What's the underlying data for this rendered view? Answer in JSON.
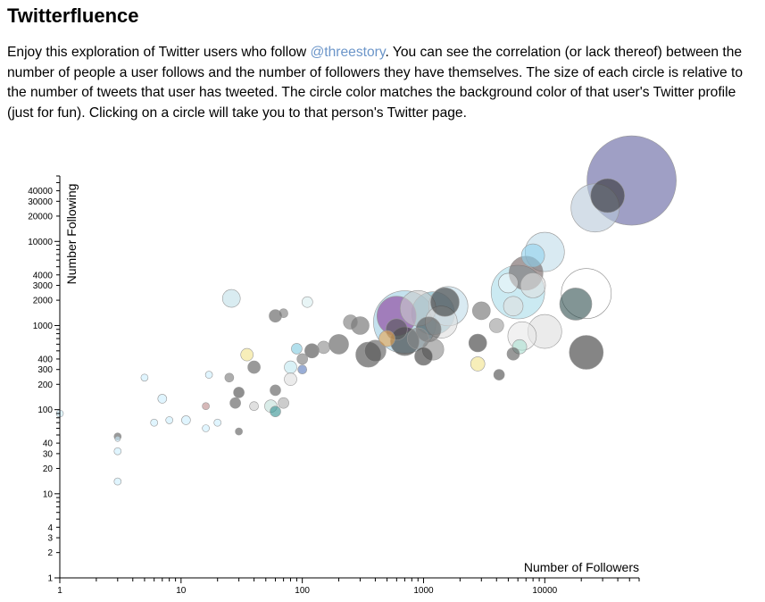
{
  "page": {
    "title": "Twitterfluence",
    "intro_before": "Enjoy this exploration of Twitter users who follow ",
    "intro_link": "@threestory",
    "intro_after": ". You can see the correlation (or lack thereof) between the number of people a user follows and the number of followers they have themselves. The size of each circle is relative to the number of tweets that user has tweeted. The circle color matches the background color of that user's Twitter profile (just for fun). Clicking on a circle will take you to that person's Twitter page."
  },
  "chart_data": {
    "type": "scatter",
    "xlabel": "Number of Followers",
    "ylabel": "Number Following",
    "xscale": "log",
    "yscale": "log",
    "xlim": [
      1,
      60000
    ],
    "ylim": [
      1,
      60000
    ],
    "x_tick_labels": [
      "1",
      "10",
      "100",
      "1000",
      "10000"
    ],
    "y_tick_labels": [
      "1",
      "2",
      "3",
      "4",
      "10",
      "20",
      "30",
      "40",
      "100",
      "200",
      "300",
      "400",
      "1000",
      "2000",
      "3000",
      "4000",
      "10000",
      "20000",
      "30000",
      "40000"
    ],
    "size_encodes": "number of tweets",
    "color_encodes": "profile background color",
    "points": [
      {
        "x": 52000,
        "y": 53000,
        "r": 50,
        "color": "#5f5f9e"
      },
      {
        "x": 26000,
        "y": 25000,
        "r": 27,
        "color": "#b8c8d8"
      },
      {
        "x": 33000,
        "y": 35000,
        "r": 19,
        "color": "#333333"
      },
      {
        "x": 10000,
        "y": 7500,
        "r": 22,
        "color": "#c0dcea"
      },
      {
        "x": 8000,
        "y": 6800,
        "r": 13,
        "color": "#8fd0ec"
      },
      {
        "x": 7000,
        "y": 4200,
        "r": 19,
        "color": "#6e5e5e"
      },
      {
        "x": 22000,
        "y": 2400,
        "r": 28,
        "color": "#ffffff"
      },
      {
        "x": 18000,
        "y": 1800,
        "r": 18,
        "color": "#2f4f4f"
      },
      {
        "x": 6000,
        "y": 2500,
        "r": 30,
        "color": "#a8dcea"
      },
      {
        "x": 8000,
        "y": 3000,
        "r": 14,
        "color": "#e0e0e0"
      },
      {
        "x": 5000,
        "y": 3200,
        "r": 11,
        "color": "#ffffff"
      },
      {
        "x": 22000,
        "y": 480,
        "r": 19,
        "color": "#333333"
      },
      {
        "x": 10000,
        "y": 850,
        "r": 19,
        "color": "#dddddd"
      },
      {
        "x": 6500,
        "y": 750,
        "r": 16,
        "color": "#e8e8e8"
      },
      {
        "x": 5500,
        "y": 1700,
        "r": 11,
        "color": "#e0e0e0"
      },
      {
        "x": 3000,
        "y": 1500,
        "r": 10,
        "color": "#6a6a6a"
      },
      {
        "x": 4000,
        "y": 1000,
        "r": 8,
        "color": "#999999"
      },
      {
        "x": 2800,
        "y": 620,
        "r": 10,
        "color": "#333333"
      },
      {
        "x": 2800,
        "y": 350,
        "r": 8,
        "color": "#f2e28a"
      },
      {
        "x": 4200,
        "y": 260,
        "r": 6,
        "color": "#444444"
      },
      {
        "x": 5500,
        "y": 460,
        "r": 7,
        "color": "#555555"
      },
      {
        "x": 6200,
        "y": 560,
        "r": 8,
        "color": "#a8e0d0"
      },
      {
        "x": 1500,
        "y": 1900,
        "r": 16,
        "color": "#333333"
      },
      {
        "x": 1600,
        "y": 1700,
        "r": 22,
        "color": "#c0dcea"
      },
      {
        "x": 1200,
        "y": 1400,
        "r": 24,
        "color": "#6fb4c8"
      },
      {
        "x": 900,
        "y": 1600,
        "r": 20,
        "color": "#cccccc"
      },
      {
        "x": 700,
        "y": 1100,
        "r": 35,
        "color": "#9ccde2"
      },
      {
        "x": 600,
        "y": 1300,
        "r": 22,
        "color": "#8a3b9a"
      },
      {
        "x": 1400,
        "y": 1100,
        "r": 18,
        "color": "#dddddd"
      },
      {
        "x": 1100,
        "y": 900,
        "r": 14,
        "color": "#555555"
      },
      {
        "x": 900,
        "y": 700,
        "r": 12,
        "color": "#888888"
      },
      {
        "x": 1200,
        "y": 520,
        "r": 12,
        "color": "#888888"
      },
      {
        "x": 1000,
        "y": 430,
        "r": 10,
        "color": "#333333"
      },
      {
        "x": 700,
        "y": 650,
        "r": 16,
        "color": "#333333"
      },
      {
        "x": 600,
        "y": 900,
        "r": 12,
        "color": "#555555"
      },
      {
        "x": 500,
        "y": 700,
        "r": 9,
        "color": "#e8a550"
      },
      {
        "x": 400,
        "y": 500,
        "r": 12,
        "color": "#555555"
      },
      {
        "x": 350,
        "y": 450,
        "r": 14,
        "color": "#444444"
      },
      {
        "x": 300,
        "y": 1000,
        "r": 10,
        "color": "#666666"
      },
      {
        "x": 250,
        "y": 1100,
        "r": 8,
        "color": "#777777"
      },
      {
        "x": 200,
        "y": 600,
        "r": 11,
        "color": "#555555"
      },
      {
        "x": 150,
        "y": 550,
        "r": 7,
        "color": "#888888"
      },
      {
        "x": 120,
        "y": 500,
        "r": 8,
        "color": "#444444"
      },
      {
        "x": 100,
        "y": 400,
        "r": 6,
        "color": "#777777"
      },
      {
        "x": 80,
        "y": 320,
        "r": 7,
        "color": "#bfe8f0"
      },
      {
        "x": 60,
        "y": 1300,
        "r": 7,
        "color": "#555555"
      },
      {
        "x": 70,
        "y": 1400,
        "r": 5,
        "color": "#777777"
      },
      {
        "x": 110,
        "y": 1900,
        "r": 6,
        "color": "#d8eef0"
      },
      {
        "x": 90,
        "y": 530,
        "r": 6,
        "color": "#7ec9e0"
      },
      {
        "x": 100,
        "y": 300,
        "r": 5,
        "color": "#5577bb"
      },
      {
        "x": 80,
        "y": 230,
        "r": 7,
        "color": "#dddddd"
      },
      {
        "x": 60,
        "y": 170,
        "r": 6,
        "color": "#555555"
      },
      {
        "x": 70,
        "y": 120,
        "r": 6,
        "color": "#aaaaaa"
      },
      {
        "x": 55,
        "y": 110,
        "r": 7,
        "color": "#bfe0d8"
      },
      {
        "x": 60,
        "y": 95,
        "r": 6,
        "color": "#2f8f8f"
      },
      {
        "x": 40,
        "y": 320,
        "r": 7,
        "color": "#555555"
      },
      {
        "x": 35,
        "y": 450,
        "r": 7,
        "color": "#f2e28a"
      },
      {
        "x": 30,
        "y": 160,
        "r": 6,
        "color": "#444444"
      },
      {
        "x": 28,
        "y": 120,
        "r": 6,
        "color": "#555555"
      },
      {
        "x": 25,
        "y": 240,
        "r": 5,
        "color": "#777777"
      },
      {
        "x": 26,
        "y": 2100,
        "r": 10,
        "color": "#bfe0e8"
      },
      {
        "x": 40,
        "y": 110,
        "r": 5,
        "color": "#cccccc"
      },
      {
        "x": 30,
        "y": 55,
        "r": 4,
        "color": "#555555"
      },
      {
        "x": 20,
        "y": 70,
        "r": 4,
        "color": "#cceeff"
      },
      {
        "x": 16,
        "y": 110,
        "r": 4,
        "color": "#bb8888"
      },
      {
        "x": 16,
        "y": 60,
        "r": 4,
        "color": "#cceeff"
      },
      {
        "x": 17,
        "y": 260,
        "r": 4,
        "color": "#cceeff"
      },
      {
        "x": 11,
        "y": 75,
        "r": 5,
        "color": "#cceeff"
      },
      {
        "x": 8,
        "y": 75,
        "r": 4,
        "color": "#cceeff"
      },
      {
        "x": 6,
        "y": 70,
        "r": 4,
        "color": "#cceeff"
      },
      {
        "x": 7,
        "y": 135,
        "r": 5,
        "color": "#cceeff"
      },
      {
        "x": 5,
        "y": 240,
        "r": 4,
        "color": "#cceeff"
      },
      {
        "x": 3,
        "y": 48,
        "r": 4,
        "color": "#555555"
      },
      {
        "x": 3,
        "y": 45,
        "r": 3,
        "color": "#cceeff"
      },
      {
        "x": 3,
        "y": 32,
        "r": 4,
        "color": "#cceeff"
      },
      {
        "x": 3,
        "y": 14,
        "r": 4,
        "color": "#cceeff"
      },
      {
        "x": 1,
        "y": 90,
        "r": 4,
        "color": "#cceeff"
      }
    ]
  }
}
